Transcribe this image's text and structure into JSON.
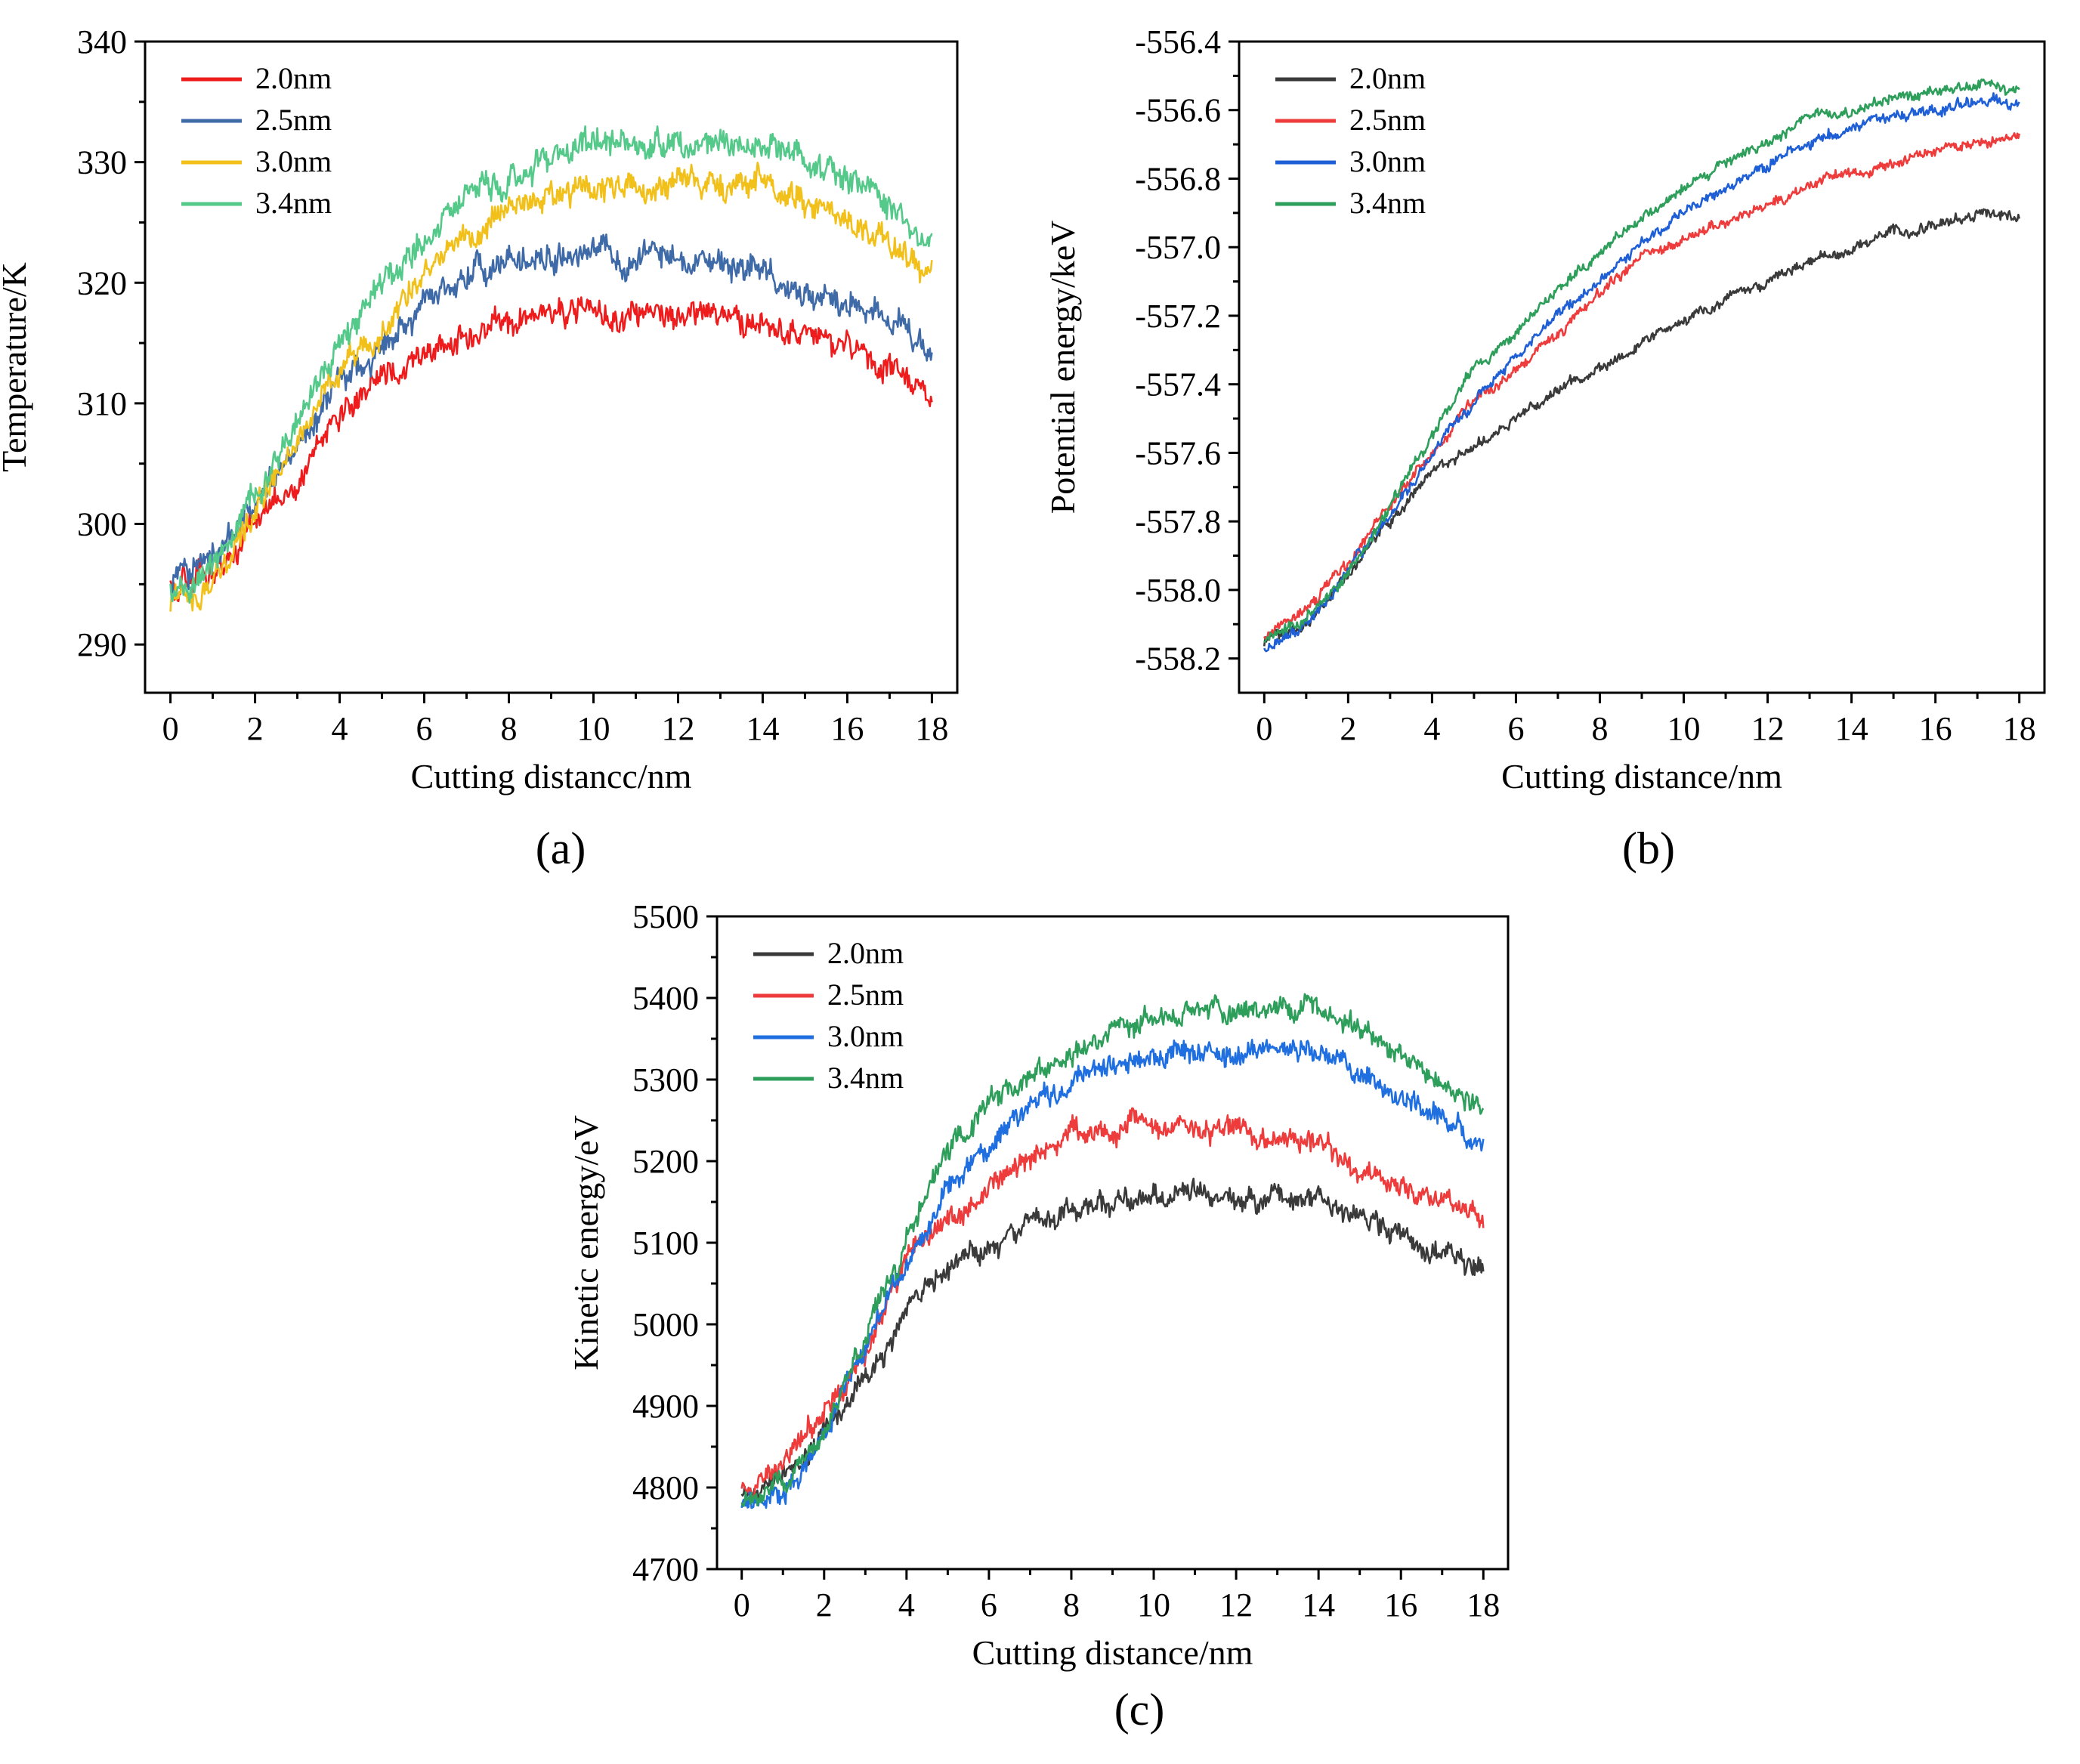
{
  "chart_data": [
    {
      "id": "a",
      "type": "line",
      "caption": "(a)",
      "xlabel": "Cutting distancc/nm",
      "ylabel": "Temperature/K",
      "xlim": [
        -0.6,
        18.6
      ],
      "ylim": [
        286,
        340
      ],
      "xticks": [
        "0",
        "2",
        "4",
        "6",
        "8",
        "10",
        "12",
        "14",
        "16",
        "18"
      ],
      "yticks": [
        "290",
        "300",
        "310",
        "320",
        "330",
        "340"
      ],
      "legend": "top-left",
      "x": [
        0,
        1,
        2,
        3,
        4,
        5,
        6,
        7,
        8,
        9,
        10,
        11,
        12,
        13,
        14,
        15,
        16,
        17,
        18
      ],
      "series": [
        {
          "name": "2.0nm",
          "color": "#ee1c1c",
          "noise": 1.0,
          "values": [
            295,
            296,
            300,
            304,
            309,
            312,
            314,
            315.5,
            316.5,
            317.5,
            317.8,
            317.5,
            317,
            317.5,
            317,
            315.5,
            314.5,
            313,
            310
          ]
        },
        {
          "name": "2.5nm",
          "color": "#3f6aa8",
          "noise": 1.0,
          "values": [
            295,
            297,
            301,
            306,
            312,
            315,
            318,
            320.5,
            322,
            322.5,
            322.5,
            322,
            321.5,
            321.5,
            321,
            319.5,
            318.5,
            317,
            314.5
          ]
        },
        {
          "name": "3.0nm",
          "color": "#f2c01a",
          "noise": 1.0,
          "values": [
            293,
            295,
            301,
            307,
            313,
            316,
            321,
            324,
            326,
            327.5,
            328,
            328,
            328,
            328.5,
            329,
            326.5,
            325,
            323,
            320.5
          ]
        },
        {
          "name": "3.4nm",
          "color": "#55c98a",
          "noise": 1.0,
          "values": [
            294,
            296,
            302,
            309,
            315,
            320,
            324,
            327,
            328.5,
            330.5,
            331.5,
            331.5,
            331.5,
            331.5,
            331.5,
            330,
            328.5,
            326,
            323
          ]
        }
      ]
    },
    {
      "id": "b",
      "type": "line",
      "caption": "(b)",
      "xlabel": "Cutting distance/nm",
      "ylabel": "Potential energy/keV",
      "xlim": [
        -0.6,
        18.6
      ],
      "ylim": [
        -558.3,
        -556.4
      ],
      "xticks": [
        "0",
        "2",
        "4",
        "6",
        "8",
        "10",
        "12",
        "14",
        "16",
        "18"
      ],
      "yticks": [
        "-556.4",
        "-556.6",
        "-556.8",
        "-557.0",
        "-557.2",
        "-557.4",
        "-557.6",
        "-557.8",
        "-558.0",
        "-558.2"
      ],
      "legend": "top-left",
      "x": [
        0,
        1,
        2,
        3,
        4,
        5,
        6,
        7,
        8,
        9,
        10,
        11,
        12,
        13,
        14,
        15,
        16,
        17,
        18
      ],
      "series": [
        {
          "name": "2.0nm",
          "color": "#3a3a3a",
          "noise": 0.014,
          "values": [
            -558.15,
            -558.1,
            -557.95,
            -557.8,
            -557.66,
            -557.58,
            -557.5,
            -557.42,
            -557.36,
            -557.28,
            -557.22,
            -557.15,
            -557.1,
            -557.04,
            -557.0,
            -556.96,
            -556.93,
            -556.9,
            -556.9
          ]
        },
        {
          "name": "2.5nm",
          "color": "#ee3b3b",
          "noise": 0.014,
          "values": [
            -558.14,
            -558.05,
            -557.92,
            -557.75,
            -557.6,
            -557.45,
            -557.36,
            -557.25,
            -557.13,
            -557.03,
            -556.98,
            -556.92,
            -556.87,
            -556.82,
            -556.78,
            -556.75,
            -556.72,
            -556.7,
            -556.68
          ]
        },
        {
          "name": "3.0nm",
          "color": "#1f5fd6",
          "noise": 0.014,
          "values": [
            -558.17,
            -558.1,
            -557.95,
            -557.78,
            -557.6,
            -557.45,
            -557.32,
            -557.2,
            -557.1,
            -556.98,
            -556.9,
            -556.83,
            -556.76,
            -556.7,
            -556.65,
            -556.62,
            -556.6,
            -556.57,
            -556.58
          ]
        },
        {
          "name": "3.4nm",
          "color": "#2e9e5b",
          "noise": 0.014,
          "values": [
            -558.15,
            -558.08,
            -557.95,
            -557.75,
            -557.55,
            -557.35,
            -557.25,
            -557.12,
            -557.02,
            -556.92,
            -556.83,
            -556.75,
            -556.7,
            -556.62,
            -556.6,
            -556.57,
            -556.56,
            -556.52,
            -556.55
          ]
        }
      ]
    },
    {
      "id": "c",
      "type": "line",
      "caption": "(c)",
      "xlabel": "Cutting distance/nm",
      "ylabel": "Kinetic energy/eV",
      "xlim": [
        -0.6,
        18.6
      ],
      "ylim": [
        4700,
        5500
      ],
      "xticks": [
        "0",
        "2",
        "4",
        "6",
        "8",
        "10",
        "12",
        "14",
        "16",
        "18"
      ],
      "yticks": [
        "4700",
        "4800",
        "4900",
        "5000",
        "5100",
        "5200",
        "5300",
        "5400",
        "5500"
      ],
      "legend": "top-left",
      "x": [
        0,
        1,
        2,
        3,
        4,
        5,
        6,
        7,
        8,
        9,
        10,
        11,
        12,
        13,
        14,
        15,
        16,
        17,
        18
      ],
      "series": [
        {
          "name": "2.0nm",
          "color": "#3a3a3a",
          "noise": 12,
          "values": [
            4790,
            4810,
            4870,
            4930,
            5020,
            5070,
            5090,
            5120,
            5140,
            5155,
            5160,
            5160,
            5150,
            5155,
            5150,
            5130,
            5110,
            5090,
            5060
          ]
        },
        {
          "name": "2.5nm",
          "color": "#ee3b3b",
          "noise": 12,
          "values": [
            4800,
            4830,
            4890,
            4960,
            5080,
            5130,
            5170,
            5200,
            5230,
            5240,
            5245,
            5240,
            5230,
            5230,
            5220,
            5190,
            5170,
            5150,
            5120
          ]
        },
        {
          "name": "3.0nm",
          "color": "#1f6fe0",
          "noise": 12,
          "values": [
            4780,
            4790,
            4860,
            4970,
            5080,
            5160,
            5220,
            5270,
            5300,
            5320,
            5330,
            5330,
            5330,
            5330,
            5340,
            5300,
            5280,
            5250,
            5220
          ]
        },
        {
          "name": "3.4nm",
          "color": "#2e9e5b",
          "noise": 12,
          "values": [
            4790,
            4800,
            4870,
            4980,
            5110,
            5210,
            5280,
            5310,
            5330,
            5360,
            5380,
            5390,
            5390,
            5390,
            5390,
            5360,
            5330,
            5290,
            5260
          ]
        }
      ]
    }
  ]
}
